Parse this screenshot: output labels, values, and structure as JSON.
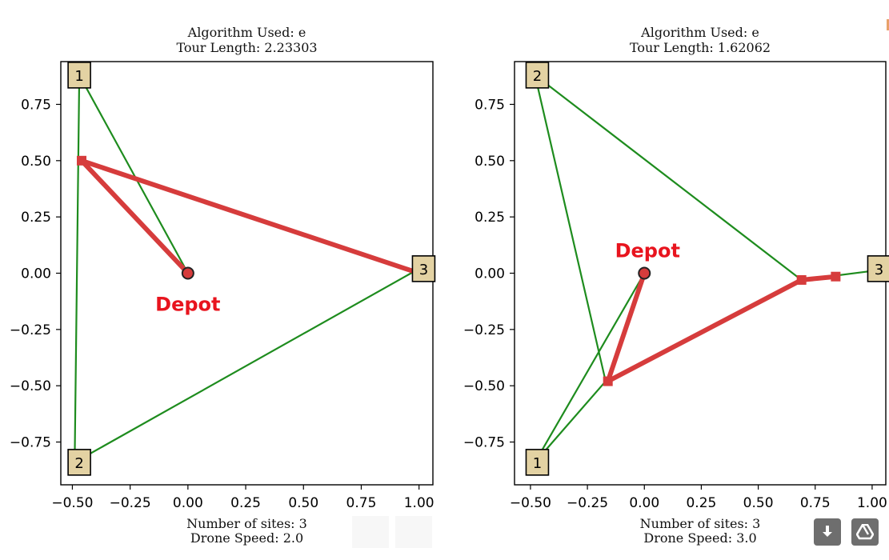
{
  "chart_data": [
    {
      "type": "line",
      "title": [
        "Algorithm Used: e",
        "Tour Length: 2.23303"
      ],
      "footer": [
        "Number of sites: 3",
        "Drone Speed: 2.0"
      ],
      "xlim": [
        -0.55,
        1.06
      ],
      "ylim": [
        -0.94,
        0.94
      ],
      "xticks": [
        -0.5,
        -0.25,
        0.0,
        0.25,
        0.5,
        0.75,
        1.0
      ],
      "xtick_labels": [
        "−0.50",
        "−0.25",
        "0.00",
        "0.25",
        "0.50",
        "0.75",
        "1.00"
      ],
      "yticks": [
        0.75,
        0.5,
        0.25,
        0.0,
        -0.25,
        -0.5,
        -0.75
      ],
      "ytick_labels": [
        "0.75",
        "0.50",
        "0.25",
        "0.00",
        "−0.25",
        "−0.50",
        "−0.75"
      ],
      "depot": {
        "x": 0.0,
        "y": 0.0,
        "label": "Depot",
        "label_pos": "below"
      },
      "sites": [
        {
          "label": "1",
          "x": -0.47,
          "y": 0.88
        },
        {
          "label": "2",
          "x": -0.47,
          "y": -0.84
        },
        {
          "label": "3",
          "x": 1.02,
          "y": 0.02
        }
      ],
      "green_route": [
        [
          0.0,
          0.0
        ],
        [
          -0.47,
          0.88
        ],
        [
          -0.49,
          -0.84
        ],
        [
          1.0,
          0.02
        ]
      ],
      "red_route": [
        [
          0.0,
          0.0
        ],
        [
          -0.46,
          0.5
        ],
        [
          1.0,
          0.0
        ]
      ],
      "red_markers": [
        [
          -0.46,
          0.5
        ]
      ],
      "grid": false
    },
    {
      "type": "line",
      "title": [
        "Algorithm Used: e",
        "Tour Length: 1.62062"
      ],
      "footer": [
        "Number of sites: 3",
        "Drone Speed: 3.0"
      ],
      "xlim": [
        -0.57,
        1.06
      ],
      "ylim": [
        -0.94,
        0.94
      ],
      "xticks": [
        -0.5,
        -0.25,
        0.0,
        0.25,
        0.5,
        0.75,
        1.0
      ],
      "xtick_labels": [
        "−0.50",
        "−0.25",
        "0.00",
        "0.25",
        "0.50",
        "0.75",
        "1.00"
      ],
      "yticks": [
        0.75,
        0.5,
        0.25,
        0.0,
        -0.25,
        -0.5,
        -0.75
      ],
      "ytick_labels": [
        "0.75",
        "0.50",
        "0.25",
        "0.00",
        "−0.25",
        "−0.50",
        "−0.75"
      ],
      "depot": {
        "x": 0.0,
        "y": 0.0,
        "label": "Depot",
        "label_pos": "above"
      },
      "sites": [
        {
          "label": "2",
          "x": -0.47,
          "y": 0.88
        },
        {
          "label": "1",
          "x": -0.47,
          "y": -0.84
        },
        {
          "label": "3",
          "x": 1.03,
          "y": 0.02
        }
      ],
      "green_route": [
        [
          0.0,
          0.0
        ],
        [
          -0.48,
          -0.84
        ],
        [
          -0.17,
          -0.48
        ],
        [
          -0.48,
          0.88
        ],
        [
          0.69,
          -0.03
        ],
        [
          1.0,
          0.01
        ]
      ],
      "red_route": [
        [
          0.0,
          0.0
        ],
        [
          -0.16,
          -0.48
        ],
        [
          0.69,
          -0.03
        ],
        [
          0.84,
          -0.015
        ]
      ],
      "red_markers": [
        [
          -0.16,
          -0.48
        ],
        [
          0.69,
          -0.03
        ],
        [
          0.84,
          -0.015
        ]
      ],
      "grid": false
    }
  ],
  "toolbar": {
    "download_icon": "download-icon",
    "drive_icon": "drive-icon"
  },
  "colors": {
    "green": "#1e8c1e",
    "red": "#d63c3c",
    "depot_label": "#e8141e",
    "site_fill": "#e3d2a3",
    "button": "#6e6e6e"
  }
}
